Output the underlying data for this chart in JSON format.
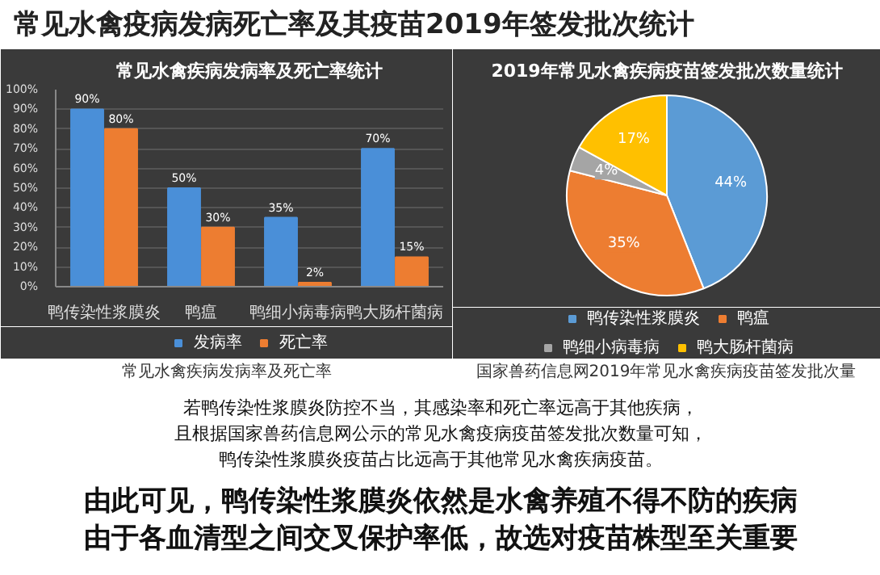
{
  "chart_data": [
    {
      "type": "other",
      "title": "常见水禽疫病发病死亡率及其疫苗2019年签发批次统计"
    },
    {
      "type": "bar",
      "title": "常见水禽疾病发病率及死亡率统计",
      "categories": [
        "鸭传染性浆膜炎",
        "鸭瘟",
        "鸭细小病毒病",
        "鸭大肠杆菌病"
      ],
      "series": [
        {
          "name": "发病率",
          "color": "#4a8fd8",
          "values": [
            90,
            50,
            35,
            70
          ],
          "value_labels": [
            "90%",
            "50%",
            "35%",
            "70%"
          ]
        },
        {
          "name": "死亡率",
          "color": "#ed7d31",
          "values": [
            80,
            30,
            2,
            15
          ],
          "value_labels": [
            "80%",
            "30%",
            "2%",
            "15%"
          ]
        }
      ],
      "ylim": [
        0,
        100
      ],
      "yticks": [
        {
          "value": 0,
          "label": "0%"
        },
        {
          "value": 10,
          "label": "10%"
        },
        {
          "value": 20,
          "label": "20%"
        },
        {
          "value": 30,
          "label": "30%"
        },
        {
          "value": 40,
          "label": "40%"
        },
        {
          "value": 50,
          "label": "50%"
        },
        {
          "value": 60,
          "label": "60%"
        },
        {
          "value": 70,
          "label": "70%"
        },
        {
          "value": 80,
          "label": "80%"
        },
        {
          "value": 90,
          "label": "90%"
        },
        {
          "value": 100,
          "label": "100%"
        }
      ],
      "grid": "y",
      "legend": "bottom",
      "annotations": [
        "常见水禽疾病发病率及死亡率"
      ]
    },
    {
      "type": "pie",
      "title": "2019年常见水禽疾病疫苗签发批次数量统计",
      "categories": [
        "鸭传染性浆膜炎",
        "鸭瘟",
        "鸭细小病毒病",
        "鸭大肠杆菌病"
      ],
      "values": [
        44,
        35,
        4,
        17
      ],
      "colors": [
        "#5b9bd5",
        "#ed7d31",
        "#a5a5a5",
        "#ffc000"
      ],
      "value_labels": [
        "44%",
        "35%",
        "4%",
        "17%"
      ],
      "legend": "bottom",
      "annotations": [
        "国家兽药信息网2019年常见水禽疾病疫苗签发批次量"
      ]
    },
    {
      "type": "other",
      "annotations": [
        "若鸭传染性浆膜炎防控不当，其感染率和死亡率远高于其他疾病，",
        "且根据国家兽药信息网公示的常见水禽疫病疫苗签发批次数量可知，",
        "鸭传染性浆膜炎疫苗占比远高于其他常见水禽疾病疫苗。",
        "由此可见，鸭传染性浆膜炎依然是水禽养殖不得不防的疾病",
        "由于各血清型之间交叉保护率低，故选对疫苗株型至关重要"
      ]
    }
  ]
}
